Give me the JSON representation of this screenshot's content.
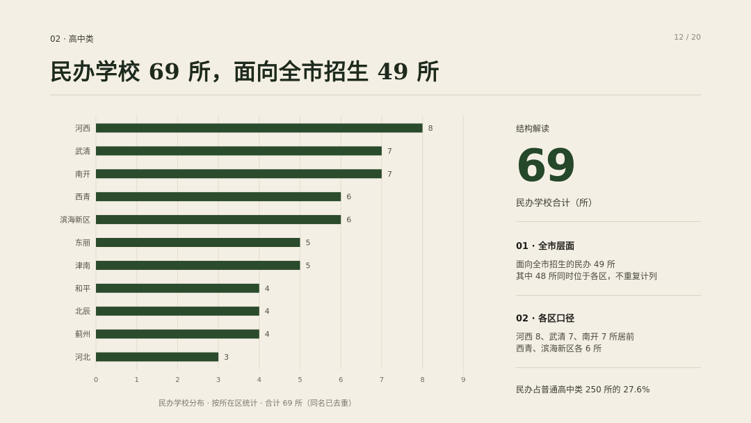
{
  "header": {
    "section": "02 · 高中类",
    "page": "12 / 20"
  },
  "title": "民办学校 69 所，面向全市招生 49 所",
  "chart_data": {
    "type": "bar",
    "orientation": "horizontal",
    "categories": [
      "河西",
      "武清",
      "南开",
      "西青",
      "滨海新区",
      "东丽",
      "津南",
      "和平",
      "北辰",
      "蓟州",
      "河北"
    ],
    "values": [
      8,
      7,
      7,
      6,
      6,
      5,
      5,
      4,
      4,
      4,
      3
    ],
    "xlim": [
      0,
      9
    ],
    "xticks": [
      0,
      1,
      2,
      3,
      4,
      5,
      6,
      7,
      8,
      9
    ],
    "grid": true,
    "bar_color": "#2a4b2c",
    "caption": "民办学校分布 · 按所在区统计 · 合计 69 所（同名已去重）"
  },
  "panel": {
    "heading": "结构解读",
    "big_number": "69",
    "big_label": "民办学校合计（所）",
    "block1": {
      "title": "01 · 全市层面",
      "line1": "面向全市招生的民办 49 所",
      "line2": "其中 48 所同时位于各区，不重复计列"
    },
    "block2": {
      "title": "02 · 各区口径",
      "line1": "河西 8、武清 7、南开 7 所居前",
      "line2": "西青、滨海新区各 6 所"
    },
    "footnote": "民办占普通高中类 250 所的 27.6%"
  }
}
